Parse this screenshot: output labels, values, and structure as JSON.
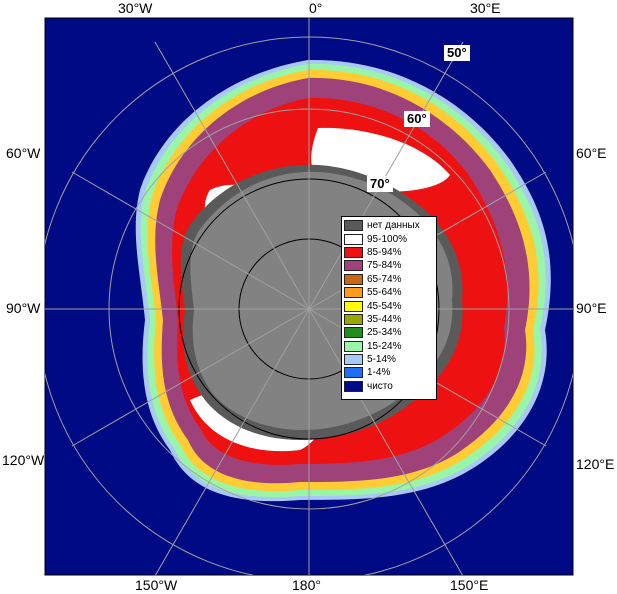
{
  "map": {
    "longitude_labels": {
      "lon_30w": "30°W",
      "lon_0": "0°",
      "lon_30e": "30°E",
      "lon_60w": "60°W",
      "lon_60e": "60°E",
      "lon_90w": "90°W",
      "lon_90e": "90°E",
      "lon_120w": "120°W",
      "lon_120e": "120°E",
      "lon_150w": "150°W",
      "lon_180": "180°",
      "lon_150e": "150°E"
    },
    "latitude_labels": {
      "lat_50": "50°",
      "lat_60": "60°",
      "lat_70": "70°"
    }
  },
  "legend": {
    "items": [
      {
        "label": "нет данных",
        "color": "#5a5a5a"
      },
      {
        "label": "95-100%",
        "color": "#ffffff"
      },
      {
        "label": "85-94%",
        "color": "#ee1111"
      },
      {
        "label": "75-84%",
        "color": "#a0427a"
      },
      {
        "label": "65-74%",
        "color": "#c8661a"
      },
      {
        "label": "55-64%",
        "color": "#ff9a1a"
      },
      {
        "label": "45-54%",
        "color": "#ffff00"
      },
      {
        "label": "35-44%",
        "color": "#99a800"
      },
      {
        "label": "25-34%",
        "color": "#1f8e1f"
      },
      {
        "label": "15-24%",
        "color": "#99f5a8"
      },
      {
        "label": "5-14%",
        "color": "#a8c8f5"
      },
      {
        "label": "1-4%",
        "color": "#1f6ef5"
      },
      {
        "label": "чисто",
        "color": "#000a84"
      }
    ]
  },
  "colors": {
    "ocean": "#000a84",
    "land": "#828282",
    "no_data": "#5a5a5a",
    "grid": "#a0a0a0"
  }
}
